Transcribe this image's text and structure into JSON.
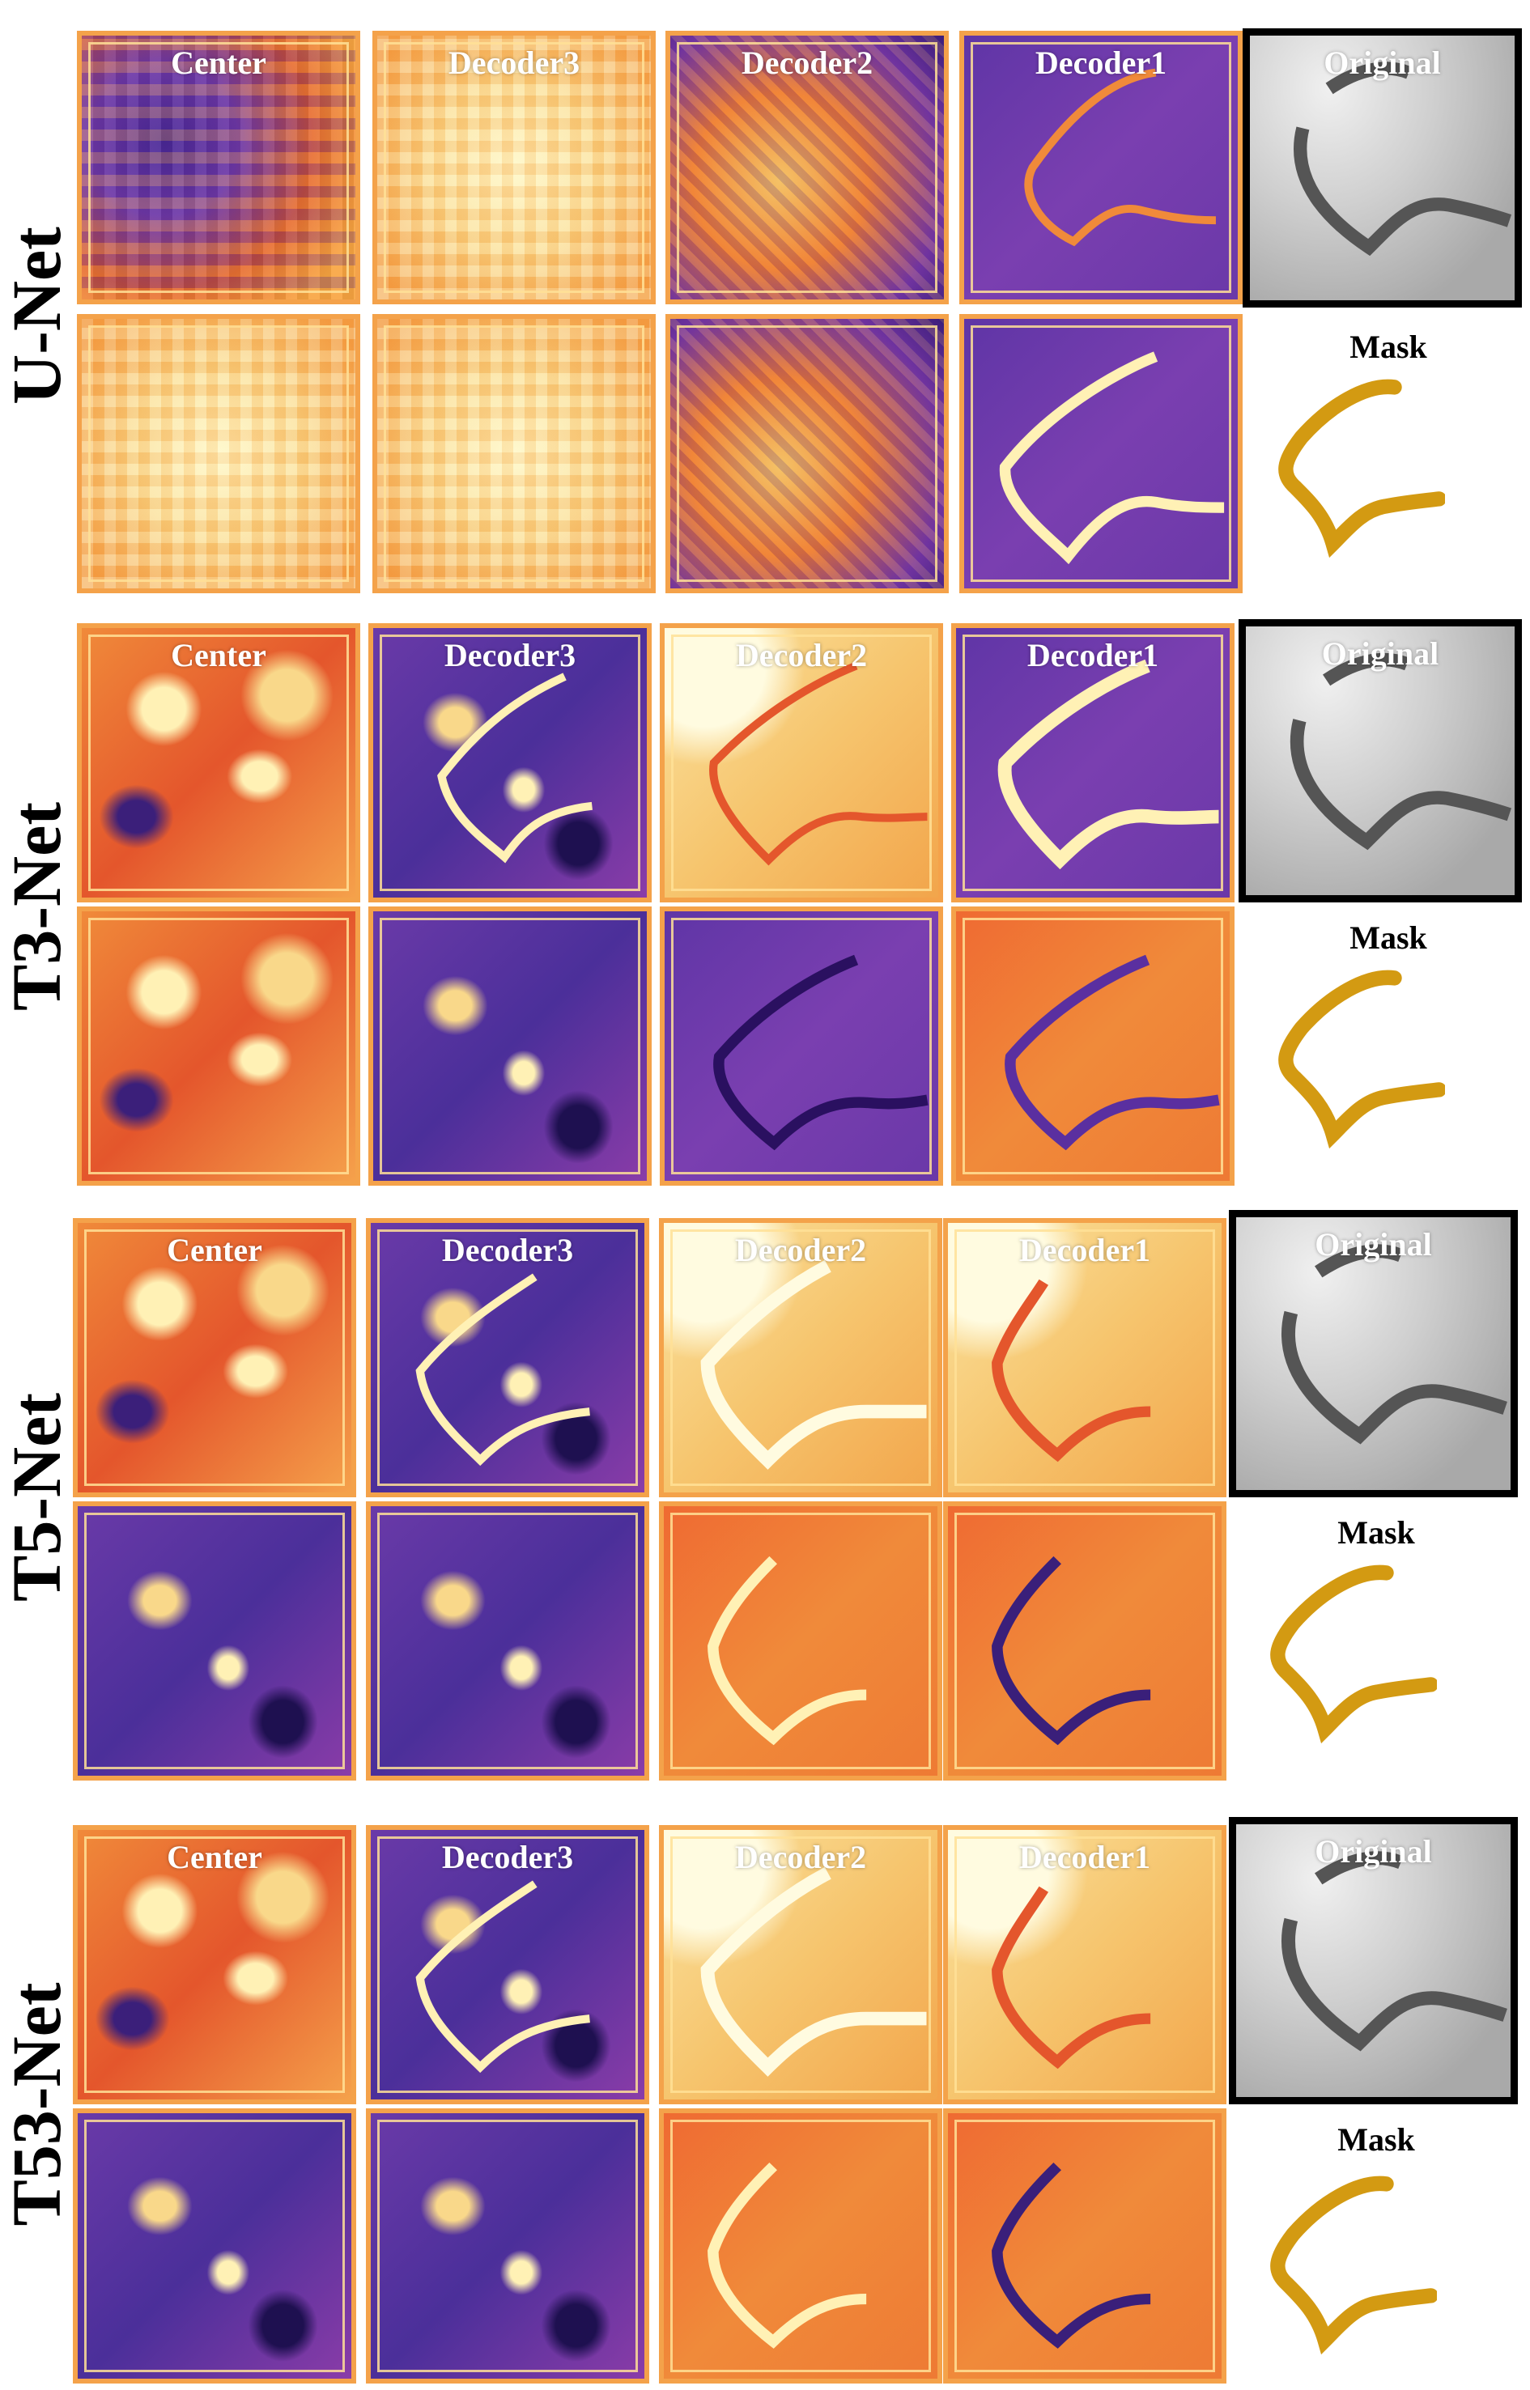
{
  "figure": {
    "net_labels": [
      "U-Net",
      "T3-Net",
      "T5-Net",
      "T53-Net"
    ],
    "column_titles": [
      "Center",
      "Decoder3",
      "Decoder2",
      "Decoder1"
    ],
    "original_label": "Original",
    "mask_label": "Mask",
    "colors": {
      "mask": "#d39a12",
      "frame": "#f4a24a",
      "colormap_low": "#3a1f7a",
      "colormap_mid": "#e4562c",
      "colormap_high": "#fff1b5"
    }
  }
}
